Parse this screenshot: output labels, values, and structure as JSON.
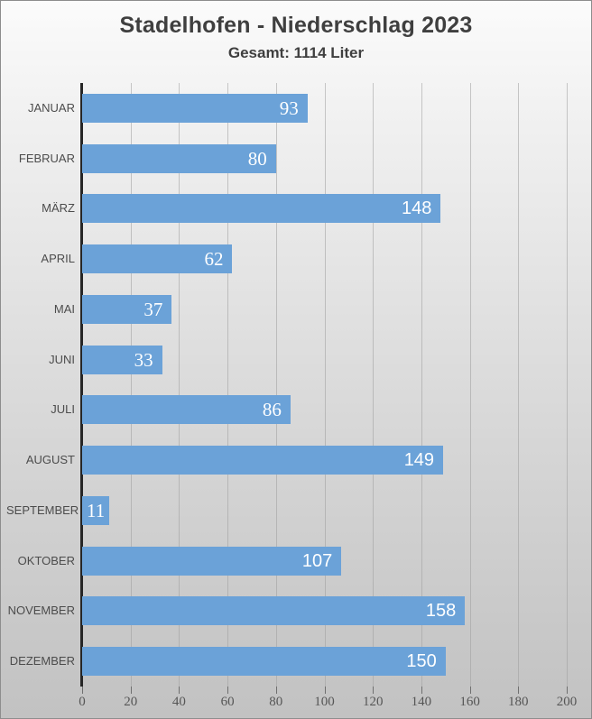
{
  "header": {
    "title": "Stadelhofen - Niederschlag 2023",
    "subtitle": "Gesamt: 1114 Liter"
  },
  "colors": {
    "bar": "#6BA2D8",
    "title_text": "#3F3F3F",
    "category_text": "#4C4C4C",
    "tick_text": "#565656",
    "data_label_text": "#FFFFFF",
    "gridline": "#9E9E9E",
    "axis_line": "#262626",
    "background_top": "#FBFBFB",
    "background_bottom": "#C2C2C2"
  },
  "chart_data": {
    "type": "bar",
    "orientation": "horizontal",
    "title": "Stadelhofen - Niederschlag 2023",
    "subtitle": "Gesamt: 1114 Liter",
    "total": 1114,
    "unit": "Liter",
    "categories": [
      "JANUAR",
      "FEBRUAR",
      "MÄRZ",
      "APRIL",
      "MAI",
      "JUNI",
      "JULI",
      "AUGUST",
      "SEPTEMBER",
      "OKTOBER",
      "NOVEMBER",
      "DEZEMBER"
    ],
    "values": [
      93,
      80,
      148,
      62,
      37,
      33,
      86,
      149,
      11,
      107,
      158,
      150
    ],
    "xlabel": "",
    "ylabel": "",
    "xlim": [
      0,
      200
    ],
    "xticks": [
      0,
      20,
      40,
      60,
      80,
      100,
      120,
      140,
      160,
      180,
      200
    ],
    "grid": true,
    "legend": false,
    "data_labels": "inside-end"
  }
}
